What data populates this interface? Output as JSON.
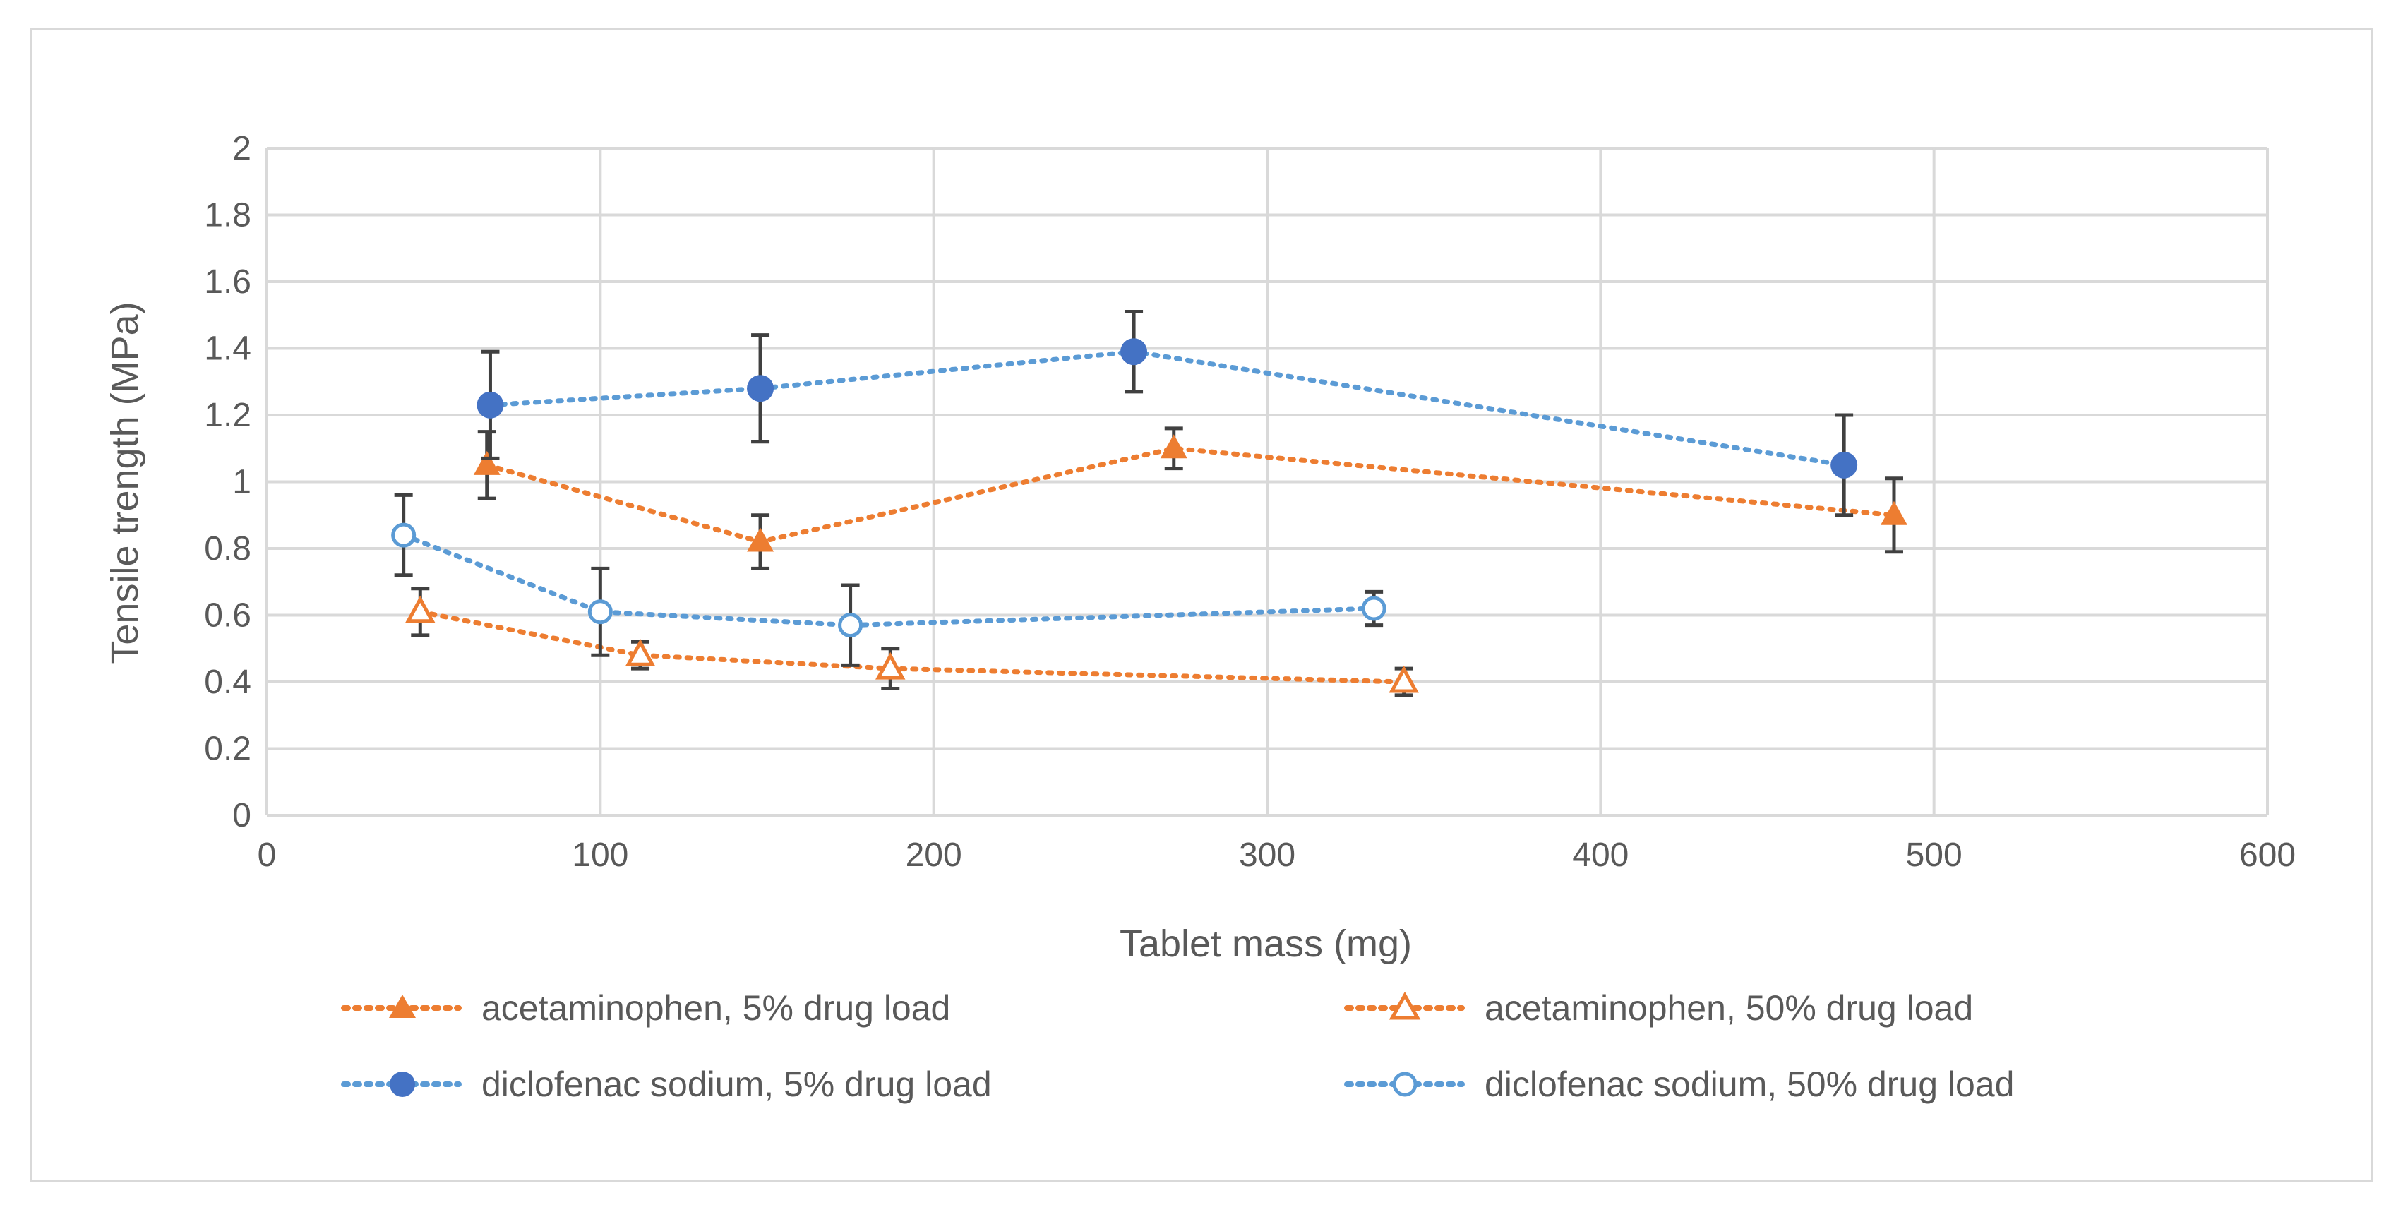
{
  "chart_data": {
    "type": "scatter",
    "title": "",
    "xlabel": "Tablet mass (mg)",
    "ylabel": "Tensile trength (MPa)",
    "xlim": [
      0,
      600
    ],
    "ylim": [
      0,
      2
    ],
    "x_ticks": [
      "0",
      "100",
      "200",
      "300",
      "400",
      "500",
      "600"
    ],
    "y_ticks": [
      "0",
      "0.2",
      "0.4",
      "0.6",
      "0.8",
      "1",
      "1.2",
      "1.4",
      "1.6",
      "1.8",
      "2"
    ],
    "grid": true,
    "legend_position": "bottom",
    "series": [
      {
        "name": "acetaminophen, 5% drug load",
        "color": "#ed7d31",
        "marker": "triangle-filled",
        "x": [
          66,
          148,
          272,
          488
        ],
        "y": [
          1.05,
          0.82,
          1.1,
          0.9
        ],
        "err": [
          0.1,
          0.08,
          0.06,
          0.11
        ]
      },
      {
        "name": "acetaminophen, 50% drug load",
        "color": "#ed7d31",
        "marker": "triangle-open",
        "x": [
          46,
          112,
          187,
          341
        ],
        "y": [
          0.61,
          0.48,
          0.44,
          0.4
        ],
        "err": [
          0.07,
          0.04,
          0.06,
          0.04
        ]
      },
      {
        "name": "diclofenac sodium, 5% drug load",
        "color": "#4472c4",
        "line_color": "#5b9bd5",
        "marker": "circle-filled",
        "x": [
          67,
          148,
          260,
          473
        ],
        "y": [
          1.23,
          1.28,
          1.39,
          1.05
        ],
        "err": [
          0.16,
          0.16,
          0.12,
          0.15
        ]
      },
      {
        "name": "diclofenac sodium, 50% drug load",
        "color": "#5b9bd5",
        "marker": "circle-open",
        "x": [
          41,
          100,
          175,
          332
        ],
        "y": [
          0.84,
          0.61,
          0.57,
          0.62
        ],
        "err": [
          0.12,
          0.13,
          0.12,
          0.05
        ]
      }
    ]
  }
}
